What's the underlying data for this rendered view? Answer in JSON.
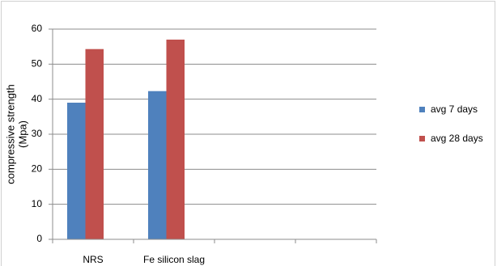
{
  "chart_data": {
    "type": "bar",
    "ylabel": [
      "compressive strength",
      "(Mpa)"
    ],
    "categories": [
      "NRS",
      "Fe silicon slag",
      null,
      null
    ],
    "series": [
      {
        "name": "avg 7 days",
        "color": "#4f81bd",
        "values": [
          39,
          42.3,
          null,
          null
        ]
      },
      {
        "name": "avg 28 days",
        "color": "#c0504d",
        "values": [
          54.3,
          57,
          null,
          null
        ]
      }
    ],
    "ylim": [
      0,
      60
    ],
    "yticks": [
      0,
      10,
      20,
      30,
      40,
      50,
      60
    ],
    "grid": true,
    "legend": "right"
  }
}
